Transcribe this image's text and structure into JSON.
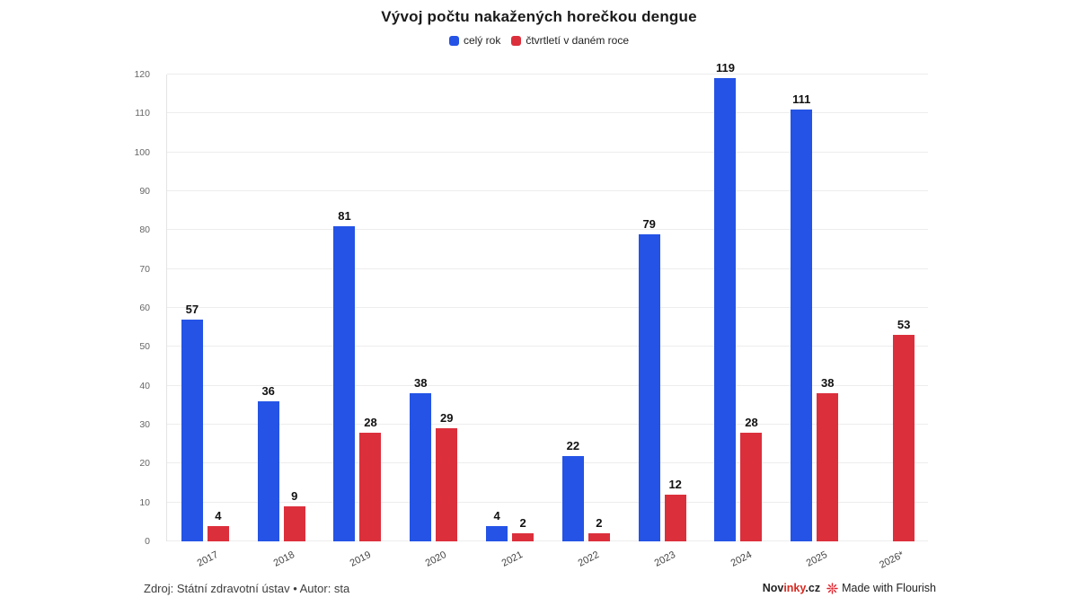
{
  "title": "Vývoj počtu nakažených horečkou dengue",
  "legend": [
    {
      "label": "celý rok",
      "color": "#2453e6"
    },
    {
      "label": "čtvrtletí v daném roce",
      "color": "#dc2f3c"
    }
  ],
  "chart_data": {
    "type": "bar",
    "title": "Vývoj počtu nakažených horečkou dengue",
    "categories": [
      "2017",
      "2018",
      "2019",
      "2020",
      "2021",
      "2022",
      "2023",
      "2024",
      "2025",
      "2026*"
    ],
    "series": [
      {
        "name": "celý rok",
        "color": "#2453e6",
        "values": [
          57,
          36,
          81,
          38,
          4,
          22,
          79,
          119,
          111,
          null
        ]
      },
      {
        "name": "čtvrtletí v daném roce",
        "color": "#dc2f3c",
        "values": [
          4,
          9,
          28,
          29,
          2,
          2,
          12,
          28,
          38,
          53
        ]
      }
    ],
    "xlabel": "",
    "ylabel": "",
    "ylim": [
      0,
      120
    ],
    "ytick_step": 10,
    "grid": true,
    "legend_position": "top",
    "value_labels": true
  },
  "footer": {
    "source": "Zdroj: Státní zdravotní ústav • Autor: sta",
    "brand": {
      "prefix": "Nov",
      "mid": "inky",
      "suffix": ".cz"
    },
    "flourish": "Made with Flourish"
  },
  "colors": {
    "gridline": "#ededed",
    "axis_line": "#e4e4e4",
    "ytick_text": "#666666",
    "xtick_text": "#444444",
    "value_label": "#111111",
    "flourish_icon": "#e0252f"
  }
}
